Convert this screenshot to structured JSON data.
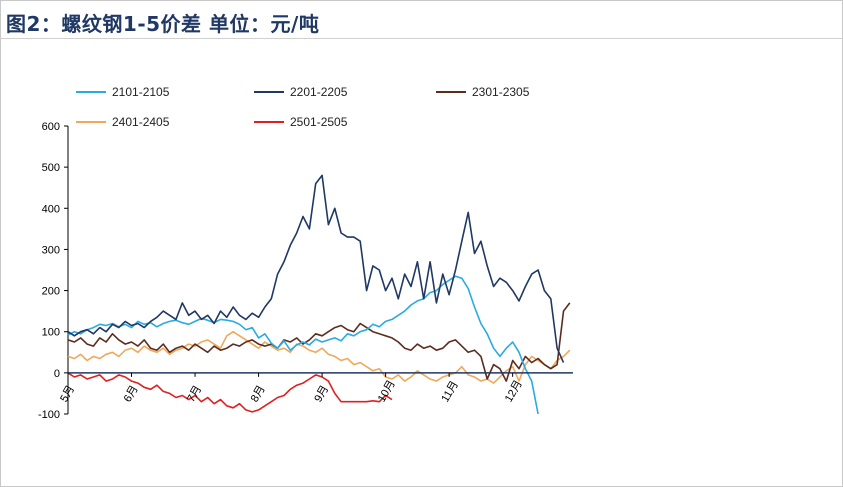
{
  "header": {
    "title": "图2：螺纹钢1-5价差   单位：元/吨"
  },
  "chart_data": {
    "type": "line",
    "title": "图2：螺纹钢1-5价差   单位：元/吨",
    "ylim": [
      -100,
      600
    ],
    "yticks": [
      "600",
      "500",
      "400",
      "300",
      "200",
      "100",
      "0",
      "-100"
    ],
    "x_categories": [
      "5月",
      "6月",
      "7月",
      "8月",
      "9月",
      "10月",
      "11月",
      "12月"
    ],
    "legend_position": "top",
    "series": [
      {
        "name": "2101-2105",
        "color": "#29abe2",
        "x": [
          0,
          0.1,
          0.2,
          0.3,
          0.4,
          0.5,
          0.6,
          0.7,
          0.8,
          0.9,
          1.0,
          1.1,
          1.2,
          1.3,
          1.4,
          1.5,
          1.6,
          1.7,
          1.8,
          1.9,
          2.0,
          2.1,
          2.2,
          2.3,
          2.4,
          2.5,
          2.6,
          2.7,
          2.8,
          2.9,
          3.0,
          3.1,
          3.2,
          3.3,
          3.4,
          3.5,
          3.6,
          3.7,
          3.8,
          3.9,
          4.0,
          4.1,
          4.2,
          4.3,
          4.4,
          4.5,
          4.6,
          4.7,
          4.8,
          4.9,
          5.0,
          5.1,
          5.2,
          5.3,
          5.4,
          5.5,
          5.6,
          5.7,
          5.8,
          5.9,
          6.0,
          6.1,
          6.2,
          6.3,
          6.4,
          6.5,
          6.6,
          6.7,
          6.8,
          6.9,
          7.0,
          7.1,
          7.2,
          7.3,
          7.4
        ],
        "y": [
          92,
          100,
          95,
          105,
          110,
          118,
          115,
          120,
          112,
          118,
          110,
          125,
          118,
          122,
          112,
          120,
          125,
          128,
          122,
          118,
          125,
          132,
          128,
          122,
          130,
          128,
          125,
          118,
          105,
          110,
          85,
          95,
          72,
          60,
          78,
          55,
          68,
          75,
          68,
          82,
          75,
          80,
          85,
          78,
          95,
          90,
          100,
          105,
          118,
          112,
          125,
          130,
          140,
          150,
          165,
          175,
          180,
          195,
          200,
          215,
          225,
          235,
          230,
          205,
          160,
          120,
          95,
          60,
          40,
          60,
          75,
          50,
          10,
          -20,
          -100
        ]
      },
      {
        "name": "2201-2205",
        "color": "#1f3864",
        "x": [
          0,
          0.1,
          0.2,
          0.3,
          0.4,
          0.5,
          0.6,
          0.7,
          0.8,
          0.9,
          1.0,
          1.1,
          1.2,
          1.3,
          1.4,
          1.5,
          1.6,
          1.7,
          1.8,
          1.9,
          2.0,
          2.1,
          2.2,
          2.3,
          2.4,
          2.5,
          2.6,
          2.7,
          2.8,
          2.9,
          3.0,
          3.1,
          3.2,
          3.3,
          3.4,
          3.5,
          3.6,
          3.7,
          3.8,
          3.9,
          4.0,
          4.1,
          4.2,
          4.3,
          4.4,
          4.5,
          4.6,
          4.7,
          4.8,
          4.9,
          5.0,
          5.1,
          5.2,
          5.3,
          5.4,
          5.5,
          5.6,
          5.7,
          5.8,
          5.9,
          6.0,
          6.1,
          6.2,
          6.3,
          6.4,
          6.5,
          6.6,
          6.7,
          6.8,
          6.9,
          7.0,
          7.1,
          7.2,
          7.3,
          7.4,
          7.5,
          7.6,
          7.7,
          7.8
        ],
        "y": [
          100,
          90,
          100,
          105,
          95,
          110,
          100,
          118,
          110,
          125,
          115,
          120,
          110,
          125,
          135,
          150,
          140,
          130,
          170,
          140,
          150,
          130,
          140,
          120,
          150,
          135,
          160,
          140,
          130,
          145,
          135,
          160,
          180,
          240,
          270,
          310,
          340,
          380,
          350,
          460,
          480,
          360,
          400,
          340,
          330,
          330,
          320,
          200,
          260,
          250,
          200,
          230,
          180,
          240,
          210,
          270,
          180,
          270,
          170,
          240,
          190,
          250,
          320,
          390,
          290,
          320,
          260,
          210,
          230,
          220,
          200,
          175,
          210,
          240,
          250,
          200,
          180,
          60,
          25
        ]
      },
      {
        "name": "2301-2305",
        "color": "#5c2d1e",
        "x": [
          0,
          0.1,
          0.2,
          0.3,
          0.4,
          0.5,
          0.6,
          0.7,
          0.8,
          0.9,
          1.0,
          1.1,
          1.2,
          1.3,
          1.4,
          1.5,
          1.6,
          1.7,
          1.8,
          1.9,
          2.0,
          2.1,
          2.2,
          2.3,
          2.4,
          2.5,
          2.6,
          2.7,
          2.8,
          2.9,
          3.0,
          3.1,
          3.2,
          3.3,
          3.4,
          3.5,
          3.6,
          3.7,
          3.8,
          3.9,
          4.0,
          4.1,
          4.2,
          4.3,
          4.4,
          4.5,
          4.6,
          4.7,
          4.8,
          4.9,
          5.0,
          5.1,
          5.2,
          5.3,
          5.4,
          5.5,
          5.6,
          5.7,
          5.8,
          5.9,
          6.0,
          6.1,
          6.2,
          6.3,
          6.4,
          6.5,
          6.6,
          6.7,
          6.8,
          6.9,
          7.0,
          7.1,
          7.2,
          7.3,
          7.4,
          7.5,
          7.6,
          7.7,
          7.8,
          7.9
        ],
        "y": [
          80,
          75,
          85,
          70,
          65,
          85,
          75,
          95,
          80,
          70,
          75,
          65,
          80,
          60,
          55,
          70,
          50,
          60,
          65,
          55,
          70,
          60,
          50,
          65,
          55,
          60,
          70,
          65,
          75,
          80,
          70,
          65,
          70,
          60,
          80,
          75,
          85,
          70,
          80,
          95,
          90,
          100,
          110,
          115,
          105,
          100,
          120,
          110,
          100,
          95,
          90,
          85,
          75,
          60,
          55,
          70,
          60,
          65,
          55,
          60,
          75,
          80,
          65,
          50,
          55,
          40,
          -15,
          20,
          10,
          -20,
          30,
          10,
          40,
          25,
          35,
          20,
          10,
          20,
          150,
          170
        ]
      },
      {
        "name": "2401-2405",
        "color": "#f0a85a",
        "x": [
          0,
          0.1,
          0.2,
          0.3,
          0.4,
          0.5,
          0.6,
          0.7,
          0.8,
          0.9,
          1.0,
          1.1,
          1.2,
          1.3,
          1.4,
          1.5,
          1.6,
          1.7,
          1.8,
          1.9,
          2.0,
          2.1,
          2.2,
          2.3,
          2.4,
          2.5,
          2.6,
          2.7,
          2.8,
          2.9,
          3.0,
          3.1,
          3.2,
          3.3,
          3.4,
          3.5,
          3.6,
          3.7,
          3.8,
          3.9,
          4.0,
          4.1,
          4.2,
          4.3,
          4.4,
          4.5,
          4.6,
          4.7,
          4.8,
          4.9,
          5.0,
          5.1,
          5.2,
          5.3,
          5.4,
          5.5,
          5.6,
          5.7,
          5.8,
          5.9,
          6.0,
          6.1,
          6.2,
          6.3,
          6.4,
          6.5,
          6.6,
          6.7,
          6.8,
          6.9,
          7.0,
          7.1,
          7.2,
          7.3,
          7.4,
          7.5,
          7.6,
          7.7,
          7.8,
          7.9
        ],
        "y": [
          40,
          35,
          45,
          30,
          40,
          35,
          45,
          50,
          40,
          55,
          60,
          50,
          65,
          55,
          50,
          60,
          45,
          55,
          60,
          70,
          65,
          75,
          80,
          70,
          60,
          90,
          100,
          90,
          80,
          70,
          60,
          75,
          65,
          55,
          60,
          50,
          70,
          65,
          55,
          50,
          60,
          45,
          40,
          30,
          35,
          20,
          25,
          15,
          5,
          10,
          -10,
          -15,
          -5,
          -20,
          -10,
          5,
          -5,
          -15,
          -20,
          -10,
          -5,
          0,
          15,
          -5,
          -10,
          -20,
          -15,
          -25,
          -10,
          5,
          15,
          -20,
          20,
          40,
          30,
          20,
          10,
          30,
          40,
          55
        ]
      },
      {
        "name": "2501-2505",
        "color": "#e02020",
        "x": [
          0,
          0.1,
          0.2,
          0.3,
          0.4,
          0.5,
          0.6,
          0.7,
          0.8,
          0.9,
          1.0,
          1.1,
          1.2,
          1.3,
          1.4,
          1.5,
          1.6,
          1.7,
          1.8,
          1.9,
          2.0,
          2.1,
          2.2,
          2.3,
          2.4,
          2.5,
          2.6,
          2.7,
          2.8,
          2.9,
          3.0,
          3.1,
          3.2,
          3.3,
          3.4,
          3.5,
          3.6,
          3.7,
          3.8,
          3.9,
          4.0,
          4.1,
          4.2,
          4.3,
          4.4,
          4.5,
          4.6,
          4.7,
          4.8,
          4.9,
          5.0,
          5.1
        ],
        "y": [
          0,
          -10,
          -5,
          -15,
          -10,
          -5,
          -20,
          -15,
          -5,
          -10,
          -20,
          -25,
          -35,
          -40,
          -30,
          -45,
          -50,
          -60,
          -55,
          -65,
          -55,
          -70,
          -60,
          -75,
          -65,
          -80,
          -85,
          -75,
          -90,
          -95,
          -90,
          -80,
          -70,
          -60,
          -55,
          -40,
          -30,
          -25,
          -15,
          -5,
          -10,
          -20,
          -50,
          -70,
          -70,
          -70,
          -70,
          -70,
          -68,
          -70,
          -55,
          -65
        ]
      }
    ]
  }
}
